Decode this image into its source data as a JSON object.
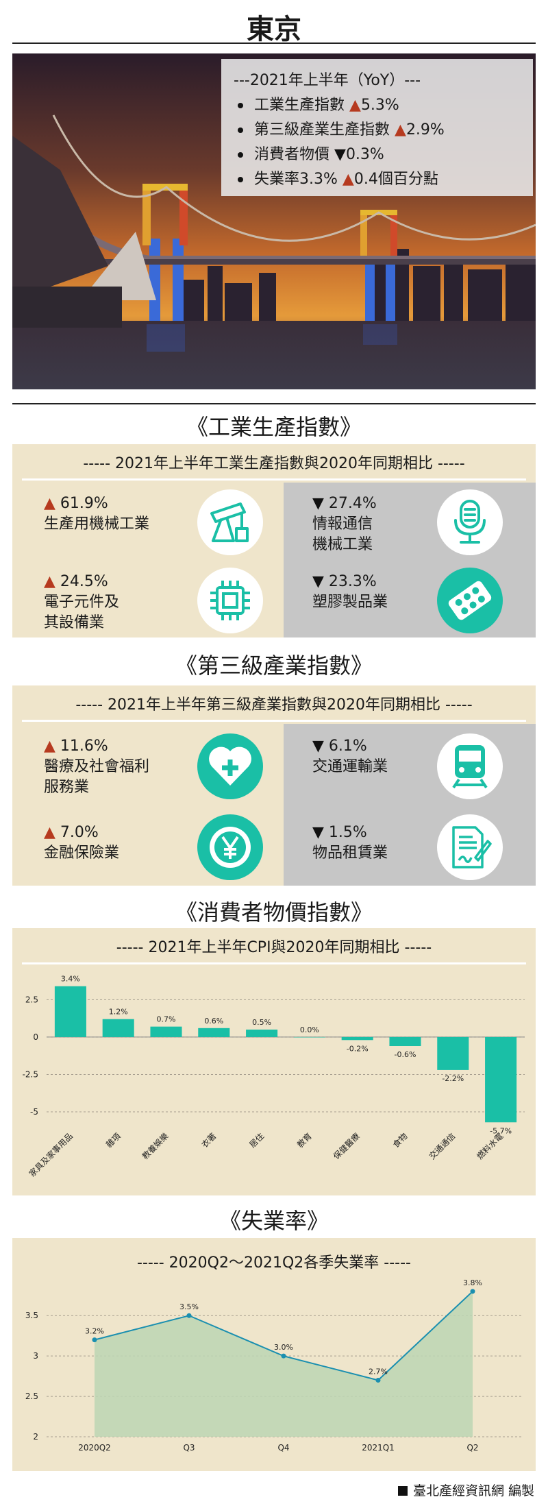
{
  "page": {
    "title": "東京",
    "footer": "臺北產經資訊網 編製"
  },
  "summary": {
    "header": "---2021年上半年（YoY）---",
    "items": [
      {
        "label": "工業生產指數",
        "arrow": "▲",
        "value": "5.3%"
      },
      {
        "label": "第三級產業生產指數",
        "arrow": "▲",
        "value": "2.9%"
      },
      {
        "label": "消費者物價",
        "arrow": "▼",
        "value": "0.3%"
      },
      {
        "label": "失業率3.3%",
        "arrow": "▲",
        "value": "0.4個百分點"
      }
    ]
  },
  "industrial": {
    "section_title": "《工業生產指數》",
    "caption": "----- 2021年上半年工業生產指數與2020年同期相比 -----",
    "items": [
      {
        "arrow": "▲",
        "value": "61.9%",
        "line1": "生產用機械工業",
        "line2": "",
        "icon": "oil-pump-icon"
      },
      {
        "arrow": "▲",
        "value": "24.5%",
        "line1": "電子元件及",
        "line2": "其設備業",
        "icon": "chip-icon"
      },
      {
        "arrow": "▼",
        "value": "27.4%",
        "line1": "情報通信",
        "line2": "機械工業",
        "icon": "microphone-icon"
      },
      {
        "arrow": "▼",
        "value": "23.3%",
        "line1": "塑膠製品業",
        "line2": "",
        "icon": "pill-pack-icon"
      }
    ]
  },
  "tertiary": {
    "section_title": "《第三級產業指數》",
    "caption": "----- 2021年上半年第三級產業指數與2020年同期相比 -----",
    "items": [
      {
        "arrow": "▲",
        "value": "11.6%",
        "line1": "醫療及社會福利",
        "line2": "服務業",
        "icon": "heart-plus-icon"
      },
      {
        "arrow": "▲",
        "value": "7.0%",
        "line1": "金融保險業",
        "line2": "",
        "icon": "yen-coin-icon"
      },
      {
        "arrow": "▼",
        "value": "6.1%",
        "line1": "交通運輸業",
        "line2": "",
        "icon": "train-icon"
      },
      {
        "arrow": "▼",
        "value": "1.5%",
        "line1": "物品租賃業",
        "line2": "",
        "icon": "contract-icon"
      }
    ]
  },
  "cpi": {
    "section_title": "《消費者物價指數》",
    "caption": "----- 2021年上半年CPI與2020年同期相比 -----"
  },
  "unemployment": {
    "section_title": "《失業率》",
    "caption": "----- 2020Q2～2021Q2各季失業率 -----"
  },
  "colors": {
    "teal": "#1abfa6",
    "panel": "#efe5cb",
    "grey_panel": "#c6c6c6",
    "up_arrow": "#b63a1f",
    "line": "#1a8fb0",
    "area": "#bcd6b4"
  },
  "chart_data": [
    {
      "type": "bar",
      "categories": [
        "家具及家事用品",
        "雜項",
        "教養娛樂",
        "衣著",
        "居住",
        "教育",
        "保健醫療",
        "食物",
        "交通通信",
        "燃料水電"
      ],
      "values": [
        3.4,
        1.2,
        0.7,
        0.6,
        0.5,
        0.0,
        -0.2,
        -0.6,
        -2.2,
        -5.7
      ],
      "data_labels": [
        "3.4%",
        "1.2%",
        "0.7%",
        "0.6%",
        "0.5%",
        "0.0%",
        "-0.2%",
        "-0.6%",
        "-2.2%",
        "-5.7%"
      ],
      "yticks": [
        2.5,
        0,
        -2.5,
        -5
      ],
      "ytick_labels": [
        "2.5",
        "0",
        "-2.5",
        "-5"
      ],
      "ylim": [
        -6.1,
        3.8
      ],
      "grid": true,
      "color": "#1abfa6"
    },
    {
      "type": "area",
      "categories": [
        "2020Q2",
        "Q3",
        "Q4",
        "2021Q1",
        "Q2"
      ],
      "values": [
        3.2,
        3.5,
        3.0,
        2.7,
        3.8
      ],
      "data_labels": [
        "3.2%",
        "3.5%",
        "3.0%",
        "2.7%",
        "3.8%"
      ],
      "yticks": [
        2,
        2.5,
        3,
        3.5
      ],
      "ytick_labels": [
        "2",
        "2.5",
        "3",
        "3.5"
      ],
      "ylim": [
        2,
        3.85
      ],
      "grid": true,
      "color": "#1a8fb0"
    }
  ]
}
